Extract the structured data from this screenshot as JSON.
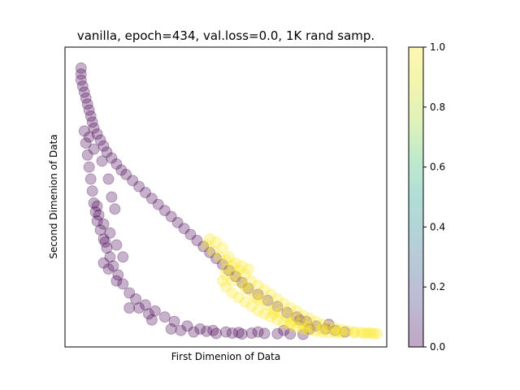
{
  "chart_data": {
    "type": "scatter",
    "title": "vanilla, epoch=434, val.loss=0.0, 1K rand samp.",
    "xlabel": "First Dimenion of Data",
    "ylabel": "Second Dimenion of Data",
    "x_ticks_visible": false,
    "y_ticks_visible": false,
    "grid": false,
    "xlim": [
      0.0,
      1.0
    ],
    "ylim": [
      0.0,
      1.0
    ],
    "marker": "circle",
    "marker_alpha": 0.3,
    "colormap": "viridis",
    "colorbar": {
      "range": [
        0.0,
        1.0
      ],
      "ticks": [
        "0.0",
        "0.2",
        "0.4",
        "0.6",
        "0.8",
        "1.0"
      ],
      "position": "right"
    },
    "series": [
      {
        "class_value": 0.0,
        "color": "#440154",
        "points": [
          [
            0.05,
            0.93
          ],
          [
            0.05,
            0.91
          ],
          [
            0.05,
            0.89
          ],
          [
            0.055,
            0.87
          ],
          [
            0.06,
            0.85
          ],
          [
            0.065,
            0.83
          ],
          [
            0.07,
            0.81
          ],
          [
            0.075,
            0.79
          ],
          [
            0.08,
            0.77
          ],
          [
            0.085,
            0.75
          ],
          [
            0.09,
            0.73
          ],
          [
            0.1,
            0.71
          ],
          [
            0.11,
            0.69
          ],
          [
            0.12,
            0.67
          ],
          [
            0.13,
            0.65
          ],
          [
            0.145,
            0.63
          ],
          [
            0.16,
            0.61
          ],
          [
            0.175,
            0.59
          ],
          [
            0.19,
            0.575
          ],
          [
            0.21,
            0.555
          ],
          [
            0.23,
            0.535
          ],
          [
            0.25,
            0.515
          ],
          [
            0.27,
            0.495
          ],
          [
            0.29,
            0.475
          ],
          [
            0.31,
            0.455
          ],
          [
            0.33,
            0.435
          ],
          [
            0.35,
            0.415
          ],
          [
            0.37,
            0.395
          ],
          [
            0.39,
            0.375
          ],
          [
            0.41,
            0.355
          ],
          [
            0.43,
            0.335
          ],
          [
            0.45,
            0.315
          ],
          [
            0.47,
            0.295
          ],
          [
            0.49,
            0.275
          ],
          [
            0.51,
            0.255
          ],
          [
            0.53,
            0.235
          ],
          [
            0.55,
            0.215
          ],
          [
            0.57,
            0.195
          ],
          [
            0.6,
            0.175
          ],
          [
            0.63,
            0.155
          ],
          [
            0.66,
            0.135
          ],
          [
            0.69,
            0.115
          ],
          [
            0.72,
            0.1
          ],
          [
            0.75,
            0.085
          ],
          [
            0.78,
            0.07
          ],
          [
            0.81,
            0.06
          ],
          [
            0.84,
            0.055
          ],
          [
            0.87,
            0.05
          ],
          [
            0.06,
            0.72
          ],
          [
            0.065,
            0.68
          ],
          [
            0.07,
            0.64
          ],
          [
            0.075,
            0.6
          ],
          [
            0.08,
            0.56
          ],
          [
            0.085,
            0.52
          ],
          [
            0.09,
            0.48
          ],
          [
            0.095,
            0.45
          ],
          [
            0.1,
            0.42
          ],
          [
            0.11,
            0.39
          ],
          [
            0.12,
            0.36
          ],
          [
            0.13,
            0.33
          ],
          [
            0.14,
            0.3
          ],
          [
            0.15,
            0.27
          ],
          [
            0.165,
            0.24
          ],
          [
            0.18,
            0.21
          ],
          [
            0.2,
            0.18
          ],
          [
            0.22,
            0.16
          ],
          [
            0.25,
            0.14
          ],
          [
            0.28,
            0.12
          ],
          [
            0.31,
            0.1
          ],
          [
            0.34,
            0.085
          ],
          [
            0.38,
            0.07
          ],
          [
            0.42,
            0.06
          ],
          [
            0.46,
            0.055
          ],
          [
            0.5,
            0.05
          ],
          [
            0.54,
            0.048
          ],
          [
            0.58,
            0.046
          ],
          [
            0.62,
            0.045
          ],
          [
            0.66,
            0.044
          ],
          [
            0.7,
            0.043
          ],
          [
            0.74,
            0.042
          ],
          [
            0.1,
            0.47
          ],
          [
            0.105,
            0.44
          ],
          [
            0.12,
            0.41
          ],
          [
            0.14,
            0.38
          ],
          [
            0.125,
            0.35
          ],
          [
            0.16,
            0.34
          ],
          [
            0.18,
            0.3
          ],
          [
            0.12,
            0.28
          ],
          [
            0.135,
            0.26
          ],
          [
            0.16,
            0.22
          ],
          [
            0.23,
            0.13
          ],
          [
            0.27,
            0.09
          ],
          [
            0.33,
            0.06
          ],
          [
            0.4,
            0.05
          ],
          [
            0.47,
            0.045
          ],
          [
            0.55,
            0.043
          ],
          [
            0.075,
            0.7
          ],
          [
            0.09,
            0.66
          ],
          [
            0.115,
            0.62
          ],
          [
            0.135,
            0.56
          ],
          [
            0.145,
            0.5
          ],
          [
            0.155,
            0.46
          ],
          [
            0.2,
            0.13
          ],
          [
            0.26,
            0.11
          ],
          [
            0.36,
            0.055
          ],
          [
            0.44,
            0.052
          ],
          [
            0.52,
            0.046
          ],
          [
            0.6,
            0.05
          ],
          [
            0.68,
            0.055
          ],
          [
            0.76,
            0.06
          ],
          [
            0.82,
            0.075
          ],
          [
            0.73,
            0.09
          ]
        ]
      },
      {
        "class_value": 1.0,
        "color": "#fde725",
        "points": [
          [
            0.44,
            0.34
          ],
          [
            0.46,
            0.32
          ],
          [
            0.48,
            0.3
          ],
          [
            0.5,
            0.29
          ],
          [
            0.52,
            0.27
          ],
          [
            0.54,
            0.255
          ],
          [
            0.56,
            0.24
          ],
          [
            0.58,
            0.22
          ],
          [
            0.6,
            0.205
          ],
          [
            0.62,
            0.19
          ],
          [
            0.64,
            0.175
          ],
          [
            0.66,
            0.16
          ],
          [
            0.68,
            0.145
          ],
          [
            0.7,
            0.13
          ],
          [
            0.72,
            0.12
          ],
          [
            0.74,
            0.105
          ],
          [
            0.76,
            0.095
          ],
          [
            0.78,
            0.085
          ],
          [
            0.8,
            0.075
          ],
          [
            0.82,
            0.068
          ],
          [
            0.84,
            0.062
          ],
          [
            0.86,
            0.057
          ],
          [
            0.88,
            0.053
          ],
          [
            0.9,
            0.05
          ],
          [
            0.92,
            0.048
          ],
          [
            0.94,
            0.046
          ],
          [
            0.96,
            0.045
          ],
          [
            0.97,
            0.044
          ],
          [
            0.49,
            0.22
          ],
          [
            0.5,
            0.2
          ],
          [
            0.52,
            0.18
          ],
          [
            0.54,
            0.165
          ],
          [
            0.56,
            0.15
          ],
          [
            0.58,
            0.135
          ],
          [
            0.6,
            0.12
          ],
          [
            0.62,
            0.11
          ],
          [
            0.64,
            0.1
          ],
          [
            0.66,
            0.09
          ],
          [
            0.68,
            0.08
          ],
          [
            0.7,
            0.072
          ],
          [
            0.72,
            0.065
          ],
          [
            0.74,
            0.06
          ],
          [
            0.76,
            0.055
          ],
          [
            0.78,
            0.052
          ],
          [
            0.8,
            0.05
          ],
          [
            0.82,
            0.048
          ],
          [
            0.84,
            0.047
          ],
          [
            0.86,
            0.046
          ],
          [
            0.5,
            0.26
          ],
          [
            0.53,
            0.24
          ],
          [
            0.55,
            0.21
          ],
          [
            0.57,
            0.19
          ],
          [
            0.59,
            0.17
          ],
          [
            0.61,
            0.155
          ],
          [
            0.63,
            0.14
          ],
          [
            0.65,
            0.125
          ],
          [
            0.67,
            0.115
          ],
          [
            0.69,
            0.1
          ],
          [
            0.71,
            0.09
          ],
          [
            0.73,
            0.08
          ],
          [
            0.75,
            0.07
          ],
          [
            0.51,
            0.3
          ],
          [
            0.53,
            0.28
          ],
          [
            0.55,
            0.27
          ],
          [
            0.57,
            0.26
          ],
          [
            0.47,
            0.35
          ],
          [
            0.45,
            0.36
          ],
          [
            0.49,
            0.33
          ],
          [
            0.5,
            0.24
          ],
          [
            0.52,
            0.22
          ],
          [
            0.56,
            0.2
          ],
          [
            0.6,
            0.16
          ],
          [
            0.65,
            0.11
          ],
          [
            0.7,
            0.08
          ],
          [
            0.75,
            0.065
          ],
          [
            0.8,
            0.058
          ],
          [
            0.85,
            0.052
          ],
          [
            0.9,
            0.047
          ],
          [
            0.93,
            0.046
          ],
          [
            0.95,
            0.047
          ]
        ]
      }
    ]
  }
}
